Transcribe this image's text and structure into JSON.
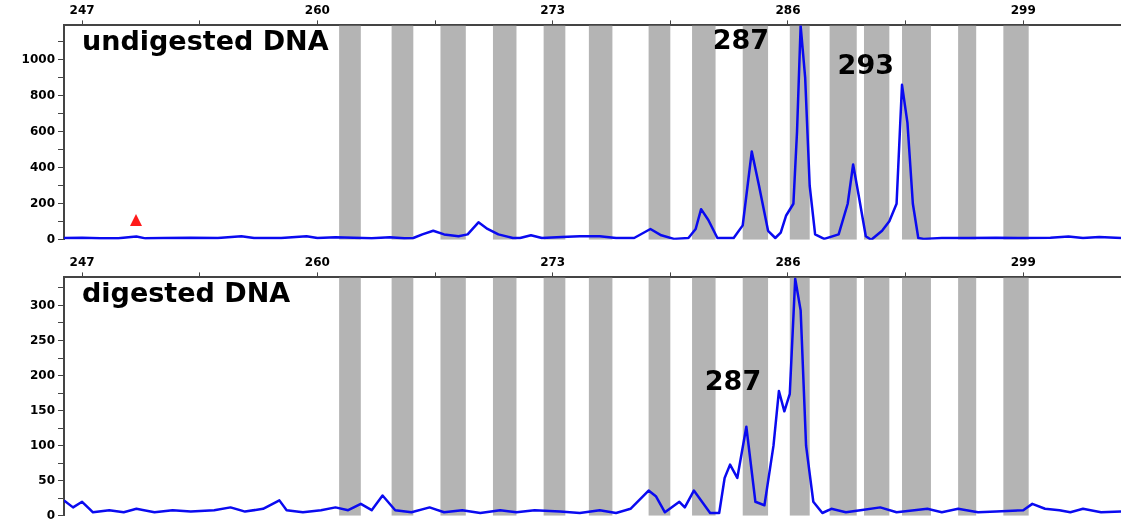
{
  "chart_data": [
    {
      "type": "line",
      "title": "undigested DNA",
      "xlim": [
        246.0,
        304.4
      ],
      "ylim": [
        0,
        1190
      ],
      "xticks": [
        247,
        {
          "value": 253.5,
          "label": null
        },
        260,
        {
          "value": 266.5,
          "label": null
        },
        273,
        {
          "value": 279.5,
          "label": null
        },
        286,
        {
          "value": 292.5,
          "label": null
        },
        299
      ],
      "yticks": [
        0,
        {
          "value": 100,
          "label": null
        },
        200,
        {
          "value": 300,
          "label": null
        },
        400,
        {
          "value": 500,
          "label": null
        },
        600,
        {
          "value": 700,
          "label": null
        },
        800,
        {
          "value": 900,
          "label": null
        },
        1000,
        {
          "value": 1100,
          "label": null
        }
      ],
      "grid": false,
      "legend": false,
      "marker": "none",
      "line_style": "solid",
      "series": [
        {
          "color": "#0a0af0",
          "x": [
            246.0,
            247,
            248,
            249,
            249.7,
            250,
            250.5,
            251.5,
            253,
            254.5,
            255.8,
            256.5,
            258,
            259.4,
            260,
            261,
            262,
            263,
            264,
            264.8,
            265.3,
            265.8,
            266.4,
            267,
            267.8,
            268.3,
            268.9,
            269.4,
            270,
            270.8,
            271.2,
            271.8,
            272.4,
            273.5,
            274.5,
            275.6,
            276.5,
            277.5,
            278.4,
            279,
            279.7,
            280.5,
            280.9,
            281.2,
            281.6,
            282.1,
            283.0,
            283.5,
            284.0,
            284.4,
            284.9,
            285.3,
            285.6,
            285.9,
            286.3,
            286.5,
            286.7,
            286.95,
            287.2,
            287.5,
            288,
            288.8,
            289.3,
            289.6,
            289.9,
            290.3,
            290.6,
            291.2,
            291.6,
            292.0,
            292.3,
            292.6,
            292.9,
            293.2,
            293.5,
            294.5,
            296,
            297.5,
            299,
            300.5,
            301.5,
            302.3,
            303.2,
            304.4
          ],
          "values": [
            10,
            12,
            8,
            8,
            15,
            18,
            8,
            10,
            12,
            10,
            20,
            10,
            10,
            20,
            10,
            14,
            12,
            8,
            14,
            8,
            10,
            30,
            50,
            30,
            20,
            30,
            97,
            60,
            30,
            10,
            10,
            25,
            10,
            15,
            20,
            20,
            10,
            10,
            60,
            25,
            5,
            10,
            60,
            170,
            110,
            10,
            10,
            80,
            490,
            300,
            50,
            10,
            40,
            135,
            200,
            600,
            1188,
            900,
            300,
            30,
            5,
            30,
            200,
            418,
            250,
            20,
            0,
            50,
            103,
            200,
            860,
            650,
            200,
            10,
            5,
            10,
            10,
            12,
            10,
            12,
            18,
            10,
            15,
            10
          ]
        }
      ],
      "bands": [
        {
          "axis": "x",
          "from": 261.2,
          "to": 262.4,
          "color": "#b4b4b4"
        },
        {
          "axis": "x",
          "from": 264.1,
          "to": 265.3,
          "color": "#b4b4b4"
        },
        {
          "axis": "x",
          "from": 266.8,
          "to": 268.2,
          "color": "#b4b4b4"
        },
        {
          "axis": "x",
          "from": 269.7,
          "to": 271.0,
          "color": "#b4b4b4"
        },
        {
          "axis": "x",
          "from": 272.5,
          "to": 273.7,
          "color": "#b4b4b4"
        },
        {
          "axis": "x",
          "from": 275.0,
          "to": 276.3,
          "color": "#b4b4b4"
        },
        {
          "axis": "x",
          "from": 278.3,
          "to": 279.5,
          "color": "#b4b4b4"
        },
        {
          "axis": "x",
          "from": 280.7,
          "to": 282.0,
          "color": "#b4b4b4"
        },
        {
          "axis": "x",
          "from": 283.5,
          "to": 284.9,
          "color": "#b4b4b4"
        },
        {
          "axis": "x",
          "from": 286.1,
          "to": 287.2,
          "color": "#b4b4b4"
        },
        {
          "axis": "x",
          "from": 288.3,
          "to": 289.8,
          "color": "#b4b4b4"
        },
        {
          "axis": "x",
          "from": 290.2,
          "to": 291.6,
          "color": "#b4b4b4"
        },
        {
          "axis": "x",
          "from": 292.3,
          "to": 293.9,
          "color": "#b4b4b4"
        },
        {
          "axis": "x",
          "from": 295.4,
          "to": 296.4,
          "color": "#b4b4b4"
        },
        {
          "axis": "x",
          "from": 297.9,
          "to": 299.3,
          "color": "#b4b4b4"
        }
      ],
      "annotations": [
        {
          "text": "287",
          "x": 283.4,
          "y": 1097
        },
        {
          "text": "293",
          "x": 290.3,
          "y": 958
        }
      ]
    },
    {
      "type": "line",
      "title": "digested DNA",
      "xlim": [
        246.0,
        304.4
      ],
      "ylim": [
        0,
        340
      ],
      "xticks": [
        247,
        {
          "value": 253.5,
          "label": null
        },
        260,
        {
          "value": 266.5,
          "label": null
        },
        273,
        {
          "value": 279.5,
          "label": null
        },
        286,
        {
          "value": 292.5,
          "label": null
        },
        299
      ],
      "yticks": [
        0,
        {
          "value": 25,
          "label": null
        },
        50,
        {
          "value": 75,
          "label": null
        },
        100,
        {
          "value": 125,
          "label": null
        },
        150,
        {
          "value": 175,
          "label": null
        },
        200,
        {
          "value": 225,
          "label": null
        },
        250,
        {
          "value": 275,
          "label": null
        },
        300,
        {
          "value": 325,
          "label": null
        }
      ],
      "grid": false,
      "legend": false,
      "marker": "none",
      "line_style": "solid",
      "series": [
        {
          "color": "#0a0af0",
          "x": [
            246.0,
            246.5,
            247.0,
            247.6,
            248.5,
            249.3,
            250.0,
            251,
            252,
            253,
            254.3,
            255.2,
            256,
            257,
            257.9,
            258.3,
            259.2,
            260.2,
            261.0,
            261.7,
            262.4,
            263.0,
            263.6,
            264.3,
            265.2,
            266.2,
            267,
            268,
            269,
            270.1,
            271,
            272,
            273.4,
            274.5,
            275.6,
            276.5,
            277.3,
            278.3,
            278.7,
            279.2,
            280.0,
            280.3,
            280.8,
            281.7,
            282.2,
            282.5,
            282.8,
            283.2,
            283.7,
            284.2,
            284.7,
            285.2,
            285.5,
            285.8,
            286.1,
            286.4,
            286.7,
            287.0,
            287.4,
            287.9,
            288.4,
            289.2,
            290,
            291.1,
            292,
            293.7,
            294.5,
            295.4,
            296.5,
            297.5,
            299.0,
            299.5,
            300.2,
            301.0,
            301.6,
            302.3,
            303.3,
            304.4
          ],
          "values": [
            22,
            12,
            20,
            5,
            8,
            5,
            10,
            5,
            8,
            6,
            8,
            12,
            6,
            10,
            22,
            8,
            5,
            8,
            12,
            8,
            17,
            8,
            29,
            8,
            5,
            12,
            5,
            8,
            4,
            8,
            5,
            8,
            6,
            4,
            8,
            4,
            10,
            36,
            28,
            5,
            20,
            12,
            36,
            4,
            4,
            54,
            73,
            54,
            127,
            20,
            15,
            100,
            178,
            149,
            174,
            338,
            293,
            100,
            20,
            4,
            10,
            5,
            8,
            12,
            5,
            10,
            5,
            10,
            5,
            6,
            8,
            17,
            10,
            8,
            5,
            10,
            5,
            6
          ]
        }
      ],
      "bands": [
        {
          "axis": "x",
          "from": 261.2,
          "to": 262.4,
          "color": "#b4b4b4"
        },
        {
          "axis": "x",
          "from": 264.1,
          "to": 265.3,
          "color": "#b4b4b4"
        },
        {
          "axis": "x",
          "from": 266.8,
          "to": 268.2,
          "color": "#b4b4b4"
        },
        {
          "axis": "x",
          "from": 269.7,
          "to": 271.0,
          "color": "#b4b4b4"
        },
        {
          "axis": "x",
          "from": 272.5,
          "to": 273.7,
          "color": "#b4b4b4"
        },
        {
          "axis": "x",
          "from": 275.0,
          "to": 276.3,
          "color": "#b4b4b4"
        },
        {
          "axis": "x",
          "from": 278.3,
          "to": 279.5,
          "color": "#b4b4b4"
        },
        {
          "axis": "x",
          "from": 280.7,
          "to": 282.0,
          "color": "#b4b4b4"
        },
        {
          "axis": "x",
          "from": 283.5,
          "to": 284.9,
          "color": "#b4b4b4"
        },
        {
          "axis": "x",
          "from": 286.1,
          "to": 287.2,
          "color": "#b4b4b4"
        },
        {
          "axis": "x",
          "from": 288.3,
          "to": 289.8,
          "color": "#b4b4b4"
        },
        {
          "axis": "x",
          "from": 290.2,
          "to": 291.6,
          "color": "#b4b4b4"
        },
        {
          "axis": "x",
          "from": 292.3,
          "to": 293.9,
          "color": "#b4b4b4"
        },
        {
          "axis": "x",
          "from": 295.4,
          "to": 296.4,
          "color": "#b4b4b4"
        },
        {
          "axis": "x",
          "from": 297.9,
          "to": 299.3,
          "color": "#b4b4b4"
        }
      ],
      "annotations": [
        "287"
      ]
    }
  ]
}
